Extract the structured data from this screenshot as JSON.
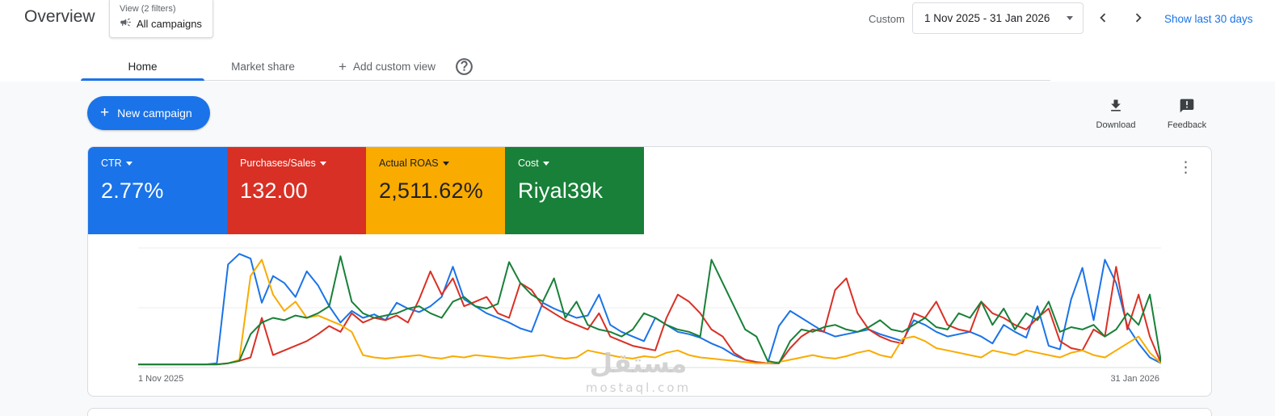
{
  "header": {
    "title": "Overview",
    "view": {
      "filters": "View (2 filters)",
      "campaigns": "All campaigns"
    },
    "custom": "Custom",
    "date_range": "1 Nov 2025 - 31 Jan 2026",
    "show_last": "Show last 30 days"
  },
  "tabs": {
    "items": [
      {
        "label": "Home"
      },
      {
        "label": "Market share"
      },
      {
        "label": "Add custom view"
      }
    ]
  },
  "actions": {
    "new_campaign": "New campaign",
    "download": "Download",
    "feedback": "Feedback"
  },
  "metrics": [
    {
      "label": "CTR",
      "value": "2.77%",
      "color": "#1a73e8",
      "text_color": "#ffffff"
    },
    {
      "label": "Purchases/Sales",
      "value": "132.00",
      "color": "#d93025",
      "text_color": "#ffffff"
    },
    {
      "label": "Actual ROAS",
      "value": "2,511.62%",
      "color": "#f9ab00",
      "text_color": "#202124"
    },
    {
      "label": "Cost",
      "value": "Riyal39k",
      "color": "#188038",
      "text_color": "#ffffff"
    }
  ],
  "watermark": {
    "arabic": "مستقل",
    "latin": "mostaql.com"
  },
  "chart_data": {
    "type": "line",
    "title": "",
    "xlabel": "",
    "ylabel": "",
    "x_start_label": "1 Nov 2025",
    "x_end_label": "31 Jan 2026",
    "ylim": [
      0,
      100
    ],
    "grid": "horizontal",
    "legend": "none",
    "series": [
      {
        "name": "CTR",
        "color": "#1a73e8",
        "values": [
          2,
          2,
          2,
          2,
          2,
          2,
          2,
          3,
          88,
          97,
          93,
          55,
          78,
          72,
          60,
          82,
          70,
          52,
          38,
          48,
          42,
          45,
          40,
          55,
          50,
          47,
          52,
          60,
          86,
          58,
          52,
          46,
          42,
          38,
          33,
          30,
          55,
          50,
          46,
          42,
          44,
          62,
          36,
          30,
          26,
          22,
          42,
          36,
          30,
          28,
          25,
          20,
          16,
          10,
          6,
          4,
          3,
          35,
          48,
          42,
          36,
          30,
          26,
          28,
          30,
          32,
          28,
          25,
          22,
          40,
          36,
          30,
          26,
          28,
          30,
          26,
          20,
          36,
          30,
          25,
          52,
          18,
          15,
          58,
          85,
          40,
          92,
          72,
          35,
          20,
          8,
          3
        ]
      },
      {
        "name": "Purchases/Sales",
        "color": "#d93025",
        "values": [
          2,
          2,
          2,
          2,
          2,
          2,
          2,
          2,
          3,
          5,
          8,
          42,
          10,
          14,
          18,
          22,
          28,
          35,
          30,
          46,
          38,
          42,
          40,
          44,
          38,
          58,
          82,
          62,
          76,
          52,
          56,
          60,
          46,
          42,
          72,
          66,
          52,
          46,
          40,
          36,
          32,
          46,
          26,
          22,
          18,
          16,
          14,
          42,
          62,
          56,
          46,
          32,
          26,
          12,
          6,
          4,
          3,
          3,
          16,
          26,
          32,
          30,
          66,
          76,
          46,
          32,
          26,
          22,
          20,
          46,
          42,
          56,
          36,
          32,
          30,
          56,
          46,
          42,
          36,
          32,
          42,
          50,
          22,
          16,
          14,
          32,
          26,
          86,
          32,
          62,
          26,
          3
        ]
      },
      {
        "name": "Actual ROAS",
        "color": "#f9ab00",
        "values": [
          2,
          2,
          2,
          2,
          2,
          2,
          2,
          2,
          3,
          6,
          78,
          92,
          62,
          48,
          56,
          42,
          44,
          40,
          36,
          30,
          10,
          8,
          7,
          8,
          9,
          10,
          8,
          7,
          9,
          8,
          10,
          9,
          8,
          7,
          8,
          9,
          10,
          8,
          7,
          8,
          14,
          12,
          10,
          8,
          7,
          9,
          8,
          12,
          14,
          10,
          8,
          7,
          6,
          5,
          4,
          3,
          3,
          4,
          6,
          8,
          10,
          8,
          7,
          9,
          12,
          14,
          10,
          8,
          24,
          26,
          22,
          16,
          14,
          12,
          10,
          8,
          14,
          12,
          10,
          14,
          12,
          10,
          8,
          12,
          14,
          10,
          8,
          14,
          20,
          26,
          12,
          3
        ]
      },
      {
        "name": "Cost",
        "color": "#188038",
        "values": [
          2,
          2,
          2,
          2,
          2,
          2,
          2,
          2,
          3,
          5,
          28,
          38,
          42,
          40,
          44,
          42,
          46,
          52,
          95,
          56,
          46,
          42,
          44,
          46,
          50,
          52,
          46,
          42,
          56,
          60,
          52,
          50,
          54,
          90,
          72,
          62,
          56,
          76,
          42,
          56,
          36,
          32,
          30,
          26,
          32,
          46,
          42,
          36,
          32,
          30,
          26,
          92,
          72,
          52,
          32,
          26,
          5,
          3,
          22,
          32,
          30,
          34,
          36,
          32,
          30,
          34,
          40,
          32,
          30,
          36,
          42,
          34,
          32,
          46,
          42,
          56,
          36,
          50,
          32,
          46,
          40,
          56,
          30,
          34,
          32,
          36,
          26,
          32,
          46,
          36,
          62,
          4
        ]
      }
    ]
  }
}
